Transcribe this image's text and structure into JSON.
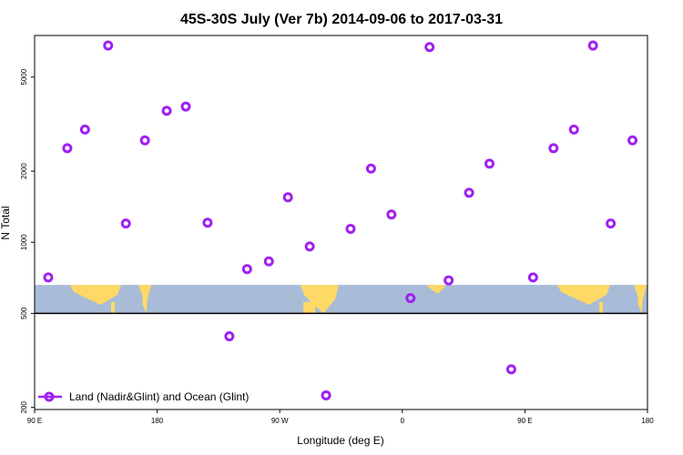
{
  "chart_data": {
    "type": "scatter",
    "title": "45S-30S July (Ver 7b)   2014-09-06 to 2017-03-31",
    "xlabel": "Longitude (deg E)",
    "ylabel": "N Total",
    "y_scale": "log",
    "xlim": [
      90,
      540
    ],
    "ylim": [
      196,
      7500
    ],
    "x_ticks": [
      {
        "value": 90,
        "label": "90 E"
      },
      {
        "value": 180,
        "label": "180"
      },
      {
        "value": 270,
        "label": "90 W"
      },
      {
        "value": 360,
        "label": "0"
      },
      {
        "value": 450,
        "label": "90 E"
      },
      {
        "value": 540,
        "label": "180"
      }
    ],
    "y_ticks": [
      {
        "value": 200,
        "label": "200"
      },
      {
        "value": 500,
        "label": "500"
      },
      {
        "value": 1000,
        "label": "1000"
      },
      {
        "value": 2000,
        "label": "2000"
      },
      {
        "value": 5000,
        "label": "5000"
      }
    ],
    "map_band": {
      "y_min": 500,
      "y_max": 660,
      "ocean_color": "#a8bcd8",
      "land_color": "#ffd966"
    },
    "baseline": 500,
    "grid": false,
    "legend_position": "bottom-left",
    "series": [
      {
        "name": "Land (Nadir&Glint) and Ocean (Glint)",
        "color": "#a020f0",
        "points": [
          {
            "x": 100,
            "y": 710
          },
          {
            "x": 114,
            "y": 2500
          },
          {
            "x": 127,
            "y": 3000
          },
          {
            "x": 144,
            "y": 6800
          },
          {
            "x": 157,
            "y": 1200
          },
          {
            "x": 171,
            "y": 2700
          },
          {
            "x": 187,
            "y": 3600
          },
          {
            "x": 201,
            "y": 3750
          },
          {
            "x": 217,
            "y": 1210
          },
          {
            "x": 233,
            "y": 400
          },
          {
            "x": 246,
            "y": 770
          },
          {
            "x": 262,
            "y": 830
          },
          {
            "x": 276,
            "y": 1550
          },
          {
            "x": 292,
            "y": 960
          },
          {
            "x": 304,
            "y": 225
          },
          {
            "x": 322,
            "y": 1140
          },
          {
            "x": 337,
            "y": 2050
          },
          {
            "x": 352,
            "y": 1310
          },
          {
            "x": 366,
            "y": 580
          },
          {
            "x": 380,
            "y": 6700
          },
          {
            "x": 394,
            "y": 690
          },
          {
            "x": 409,
            "y": 1620
          },
          {
            "x": 424,
            "y": 2150
          },
          {
            "x": 440,
            "y": 290
          },
          {
            "x": 456,
            "y": 710
          },
          {
            "x": 471,
            "y": 2500
          },
          {
            "x": 486,
            "y": 3000
          },
          {
            "x": 500,
            "y": 6800
          },
          {
            "x": 513,
            "y": 1200
          },
          {
            "x": 529,
            "y": 2700
          }
        ]
      }
    ]
  }
}
